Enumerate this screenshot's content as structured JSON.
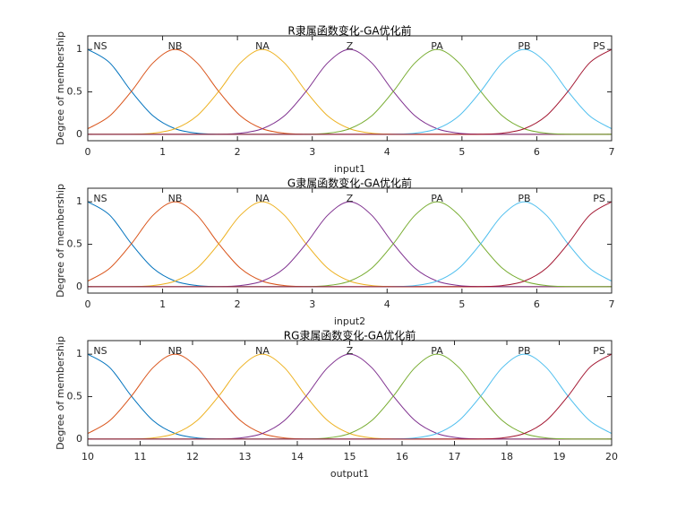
{
  "chart_data": [
    {
      "type": "line",
      "title": "R隶属函数变化-GA优化前",
      "xlabel": "input1",
      "ylabel": "Degree of membership",
      "x": [
        0,
        0.292,
        0.583,
        0.875,
        1.167,
        1.458,
        1.75,
        2.042,
        2.333,
        2.625,
        2.917,
        3.208,
        3.5,
        3.792,
        4.083,
        4.375,
        4.667,
        4.958,
        5.25,
        5.542,
        5.833,
        6.125,
        6.417,
        6.708,
        7
      ],
      "series": [
        {
          "name": "NS",
          "color": "#0072bd",
          "values": [
            1,
            0.844,
            0.506,
            0.216,
            0.066,
            0.014,
            0.002,
            0,
            0,
            0,
            0,
            0,
            0,
            0,
            0,
            0,
            0,
            0,
            0,
            0,
            0,
            0,
            0,
            0,
            0
          ]
        },
        {
          "name": "NB",
          "color": "#d95319",
          "values": [
            0.066,
            0.216,
            0.506,
            0.844,
            1,
            0.844,
            0.506,
            0.216,
            0.066,
            0.014,
            0.002,
            0,
            0,
            0,
            0,
            0,
            0,
            0,
            0,
            0,
            0,
            0,
            0,
            0,
            0
          ]
        },
        {
          "name": "NA",
          "color": "#edb120",
          "values": [
            0,
            0,
            0.002,
            0.014,
            0.066,
            0.216,
            0.506,
            0.844,
            1,
            0.844,
            0.506,
            0.216,
            0.066,
            0.014,
            0.002,
            0,
            0,
            0,
            0,
            0,
            0,
            0,
            0,
            0,
            0
          ]
        },
        {
          "name": "Z",
          "color": "#7e2f8e",
          "values": [
            0,
            0,
            0,
            0,
            0,
            0,
            0.002,
            0.014,
            0.066,
            0.216,
            0.506,
            0.844,
            1,
            0.844,
            0.506,
            0.216,
            0.066,
            0.014,
            0.002,
            0,
            0,
            0,
            0,
            0,
            0
          ]
        },
        {
          "name": "PA",
          "color": "#77ac30",
          "values": [
            0,
            0,
            0,
            0,
            0,
            0,
            0,
            0,
            0,
            0,
            0.002,
            0.014,
            0.066,
            0.216,
            0.506,
            0.844,
            1,
            0.844,
            0.506,
            0.216,
            0.066,
            0.014,
            0.002,
            0,
            0
          ]
        },
        {
          "name": "PB",
          "color": "#4dbeee",
          "values": [
            0,
            0,
            0,
            0,
            0,
            0,
            0,
            0,
            0,
            0,
            0,
            0,
            0,
            0,
            0.002,
            0.014,
            0.066,
            0.216,
            0.506,
            0.844,
            1,
            0.844,
            0.506,
            0.216,
            0.066
          ]
        },
        {
          "name": "PS",
          "color": "#a2142f",
          "values": [
            0,
            0,
            0,
            0,
            0,
            0,
            0,
            0,
            0,
            0,
            0,
            0,
            0,
            0,
            0,
            0,
            0,
            0,
            0.002,
            0.014,
            0.066,
            0.216,
            0.506,
            0.844,
            1
          ]
        }
      ],
      "xlim": [
        0,
        7
      ],
      "ylim": [
        -0.075,
        1.16
      ],
      "xticks": [
        0,
        1,
        2,
        3,
        4,
        5,
        6,
        7
      ],
      "yticks": [
        0,
        0.5,
        1
      ]
    },
    {
      "type": "line",
      "title": "G隶属函数变化-GA优化前",
      "xlabel": "input2",
      "ylabel": "Degree of membership",
      "x": [
        0,
        0.292,
        0.583,
        0.875,
        1.167,
        1.458,
        1.75,
        2.042,
        2.333,
        2.625,
        2.917,
        3.208,
        3.5,
        3.792,
        4.083,
        4.375,
        4.667,
        4.958,
        5.25,
        5.542,
        5.833,
        6.125,
        6.417,
        6.708,
        7
      ],
      "series": [
        {
          "name": "NS",
          "color": "#0072bd",
          "values": [
            1,
            0.844,
            0.506,
            0.216,
            0.066,
            0.014,
            0.002,
            0,
            0,
            0,
            0,
            0,
            0,
            0,
            0,
            0,
            0,
            0,
            0,
            0,
            0,
            0,
            0,
            0,
            0
          ]
        },
        {
          "name": "NB",
          "color": "#d95319",
          "values": [
            0.066,
            0.216,
            0.506,
            0.844,
            1,
            0.844,
            0.506,
            0.216,
            0.066,
            0.014,
            0.002,
            0,
            0,
            0,
            0,
            0,
            0,
            0,
            0,
            0,
            0,
            0,
            0,
            0,
            0
          ]
        },
        {
          "name": "NA",
          "color": "#edb120",
          "values": [
            0,
            0,
            0.002,
            0.014,
            0.066,
            0.216,
            0.506,
            0.844,
            1,
            0.844,
            0.506,
            0.216,
            0.066,
            0.014,
            0.002,
            0,
            0,
            0,
            0,
            0,
            0,
            0,
            0,
            0,
            0
          ]
        },
        {
          "name": "Z",
          "color": "#7e2f8e",
          "values": [
            0,
            0,
            0,
            0,
            0,
            0,
            0.002,
            0.014,
            0.066,
            0.216,
            0.506,
            0.844,
            1,
            0.844,
            0.506,
            0.216,
            0.066,
            0.014,
            0.002,
            0,
            0,
            0,
            0,
            0,
            0
          ]
        },
        {
          "name": "PA",
          "color": "#77ac30",
          "values": [
            0,
            0,
            0,
            0,
            0,
            0,
            0,
            0,
            0,
            0,
            0.002,
            0.014,
            0.066,
            0.216,
            0.506,
            0.844,
            1,
            0.844,
            0.506,
            0.216,
            0.066,
            0.014,
            0.002,
            0,
            0
          ]
        },
        {
          "name": "PB",
          "color": "#4dbeee",
          "values": [
            0,
            0,
            0,
            0,
            0,
            0,
            0,
            0,
            0,
            0,
            0,
            0,
            0,
            0,
            0.002,
            0.014,
            0.066,
            0.216,
            0.506,
            0.844,
            1,
            0.844,
            0.506,
            0.216,
            0.066
          ]
        },
        {
          "name": "PS",
          "color": "#a2142f",
          "values": [
            0,
            0,
            0,
            0,
            0,
            0,
            0,
            0,
            0,
            0,
            0,
            0,
            0,
            0,
            0,
            0,
            0,
            0,
            0.002,
            0.014,
            0.066,
            0.216,
            0.506,
            0.844,
            1
          ]
        }
      ],
      "xlim": [
        0,
        7
      ],
      "ylim": [
        -0.075,
        1.16
      ],
      "xticks": [
        0,
        1,
        2,
        3,
        4,
        5,
        6,
        7
      ],
      "yticks": [
        0,
        0.5,
        1
      ]
    },
    {
      "type": "line",
      "title": "RG隶属函数变化-GA优化前",
      "xlabel": "output1",
      "ylabel": "Degree of membership",
      "x": [
        10,
        10.417,
        10.833,
        11.25,
        11.667,
        12.083,
        12.5,
        12.917,
        13.333,
        13.75,
        14.167,
        14.583,
        15,
        15.417,
        15.833,
        16.25,
        16.667,
        17.083,
        17.5,
        17.917,
        18.333,
        18.75,
        19.167,
        19.583,
        20
      ],
      "series": [
        {
          "name": "NS",
          "color": "#0072bd",
          "values": [
            1,
            0.844,
            0.506,
            0.216,
            0.066,
            0.014,
            0.002,
            0,
            0,
            0,
            0,
            0,
            0,
            0,
            0,
            0,
            0,
            0,
            0,
            0,
            0,
            0,
            0,
            0,
            0
          ]
        },
        {
          "name": "NB",
          "color": "#d95319",
          "values": [
            0.066,
            0.216,
            0.506,
            0.844,
            1,
            0.844,
            0.506,
            0.216,
            0.066,
            0.014,
            0.002,
            0,
            0,
            0,
            0,
            0,
            0,
            0,
            0,
            0,
            0,
            0,
            0,
            0,
            0
          ]
        },
        {
          "name": "NA",
          "color": "#edb120",
          "values": [
            0,
            0,
            0.002,
            0.014,
            0.066,
            0.216,
            0.506,
            0.844,
            1,
            0.844,
            0.506,
            0.216,
            0.066,
            0.014,
            0.002,
            0,
            0,
            0,
            0,
            0,
            0,
            0,
            0,
            0,
            0
          ]
        },
        {
          "name": "Z",
          "color": "#7e2f8e",
          "values": [
            0,
            0,
            0,
            0,
            0,
            0,
            0.002,
            0.014,
            0.066,
            0.216,
            0.506,
            0.844,
            1,
            0.844,
            0.506,
            0.216,
            0.066,
            0.014,
            0.002,
            0,
            0,
            0,
            0,
            0,
            0
          ]
        },
        {
          "name": "PA",
          "color": "#77ac30",
          "values": [
            0,
            0,
            0,
            0,
            0,
            0,
            0,
            0,
            0,
            0,
            0.002,
            0.014,
            0.066,
            0.216,
            0.506,
            0.844,
            1,
            0.844,
            0.506,
            0.216,
            0.066,
            0.014,
            0.002,
            0,
            0
          ]
        },
        {
          "name": "PB",
          "color": "#4dbeee",
          "values": [
            0,
            0,
            0,
            0,
            0,
            0,
            0,
            0,
            0,
            0,
            0,
            0,
            0,
            0,
            0.002,
            0.014,
            0.066,
            0.216,
            0.506,
            0.844,
            1,
            0.844,
            0.506,
            0.216,
            0.066
          ]
        },
        {
          "name": "PS",
          "color": "#a2142f",
          "values": [
            0,
            0,
            0,
            0,
            0,
            0,
            0,
            0,
            0,
            0,
            0,
            0,
            0,
            0,
            0,
            0,
            0,
            0,
            0.002,
            0.014,
            0.066,
            0.216,
            0.506,
            0.844,
            1
          ]
        }
      ],
      "xlim": [
        10,
        20
      ],
      "ylim": [
        -0.075,
        1.16
      ],
      "xticks": [
        10,
        11,
        12,
        13,
        14,
        15,
        16,
        17,
        18,
        19,
        20
      ],
      "yticks": [
        0,
        0.5,
        1
      ]
    }
  ]
}
